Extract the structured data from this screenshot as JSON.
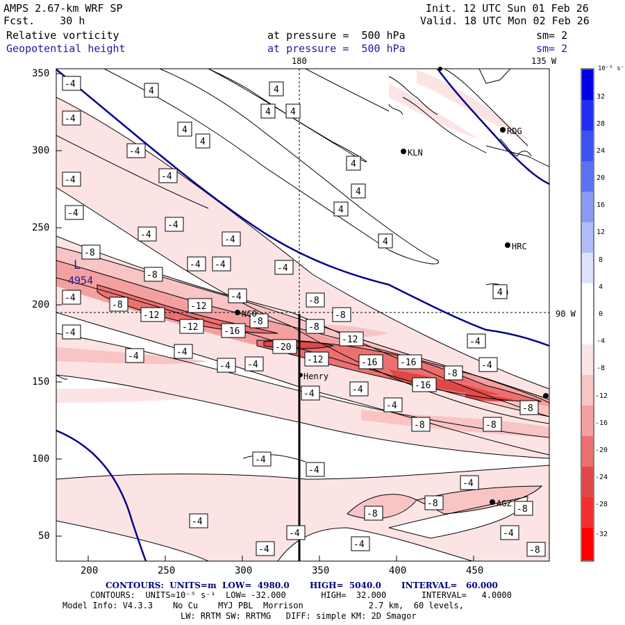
{
  "header": {
    "model": "AMPS 2.67-km WRF SP",
    "fcst": "Fcst.    30 h",
    "init": "Init. 12 UTC Sun 01 Feb 26",
    "valid": "Valid. 18 UTC Mon 02 Feb 26",
    "field1": "Relative vorticity",
    "field1_level": "at pressure =  500 hPa",
    "field1_sm": "sm= 2",
    "field2": "Geopotential height",
    "field2_level": "at pressure =  500 hPa",
    "field2_sm": "sm= 2"
  },
  "map": {
    "lon_labels": [
      "180",
      "135 W",
      "90 W"
    ],
    "x_ticks": [
      "200",
      "250",
      "300",
      "350",
      "400",
      "450"
    ],
    "y_ticks": [
      "50",
      "100",
      "150",
      "200",
      "250",
      "300",
      "350"
    ],
    "stations": [
      "RDG",
      "KLN",
      "HRC",
      "NCO",
      "Henry",
      "AGZ"
    ],
    "low_center": {
      "symbol": "L",
      "value": "4954"
    },
    "contour_labels": {
      "neg4": "-4",
      "pos4": "4",
      "neg8": "-8",
      "neg12": "-12",
      "neg16": "-16",
      "neg20": "-20"
    },
    "colors": {
      "height_contour": "#00008b",
      "shade_4": "#fde4e4",
      "shade_8": "#f9c4c4",
      "shade_12": "#f4a0a0",
      "shade_16": "#ec7070",
      "shade_20": "#e04848"
    }
  },
  "colorbar": {
    "unit": "10⁻⁵ s⁻¹",
    "labels": [
      "32",
      "28",
      "24",
      "20",
      "16",
      "12",
      "8",
      "4",
      "0",
      "-4",
      "-8",
      "-12",
      "-16",
      "-20",
      "-24",
      "-28",
      "-32"
    ]
  },
  "footer": {
    "line1": "CONTOURS:  UNITS=m  LOW=  4980.0       HIGH=  5040.0       INTERVAL=   60.000",
    "line2": "CONTOURS:  UNITS=10⁻⁵ s⁻¹  LOW= -32.000       HIGH=  32.000       INTERVAL=   4.0000",
    "line3": "Model Info: V4.3.3    No Cu    MYJ PBL  Morrison             2.7 km,  60 levels,",
    "line4": "LW: RRTM SW: RRTMG   DIFF: simple KM: 2D Smagor"
  }
}
